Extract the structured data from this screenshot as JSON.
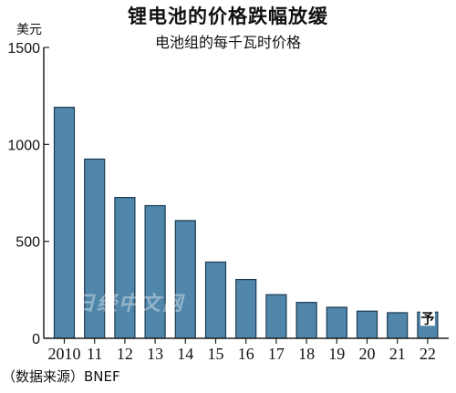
{
  "title": "锂电池的价格跌幅放缓",
  "subtitle": "电池组的每千瓦时价格",
  "unit": "美元",
  "source": "（数据来源）BNEF",
  "watermark": "日经中文网",
  "forecast_label": "予",
  "colors": {
    "bar": "#4f86aa",
    "bar_edge": "#1c3a52",
    "axis": "#222222"
  },
  "chart_data": {
    "type": "bar",
    "categories": [
      "2010",
      "11",
      "12",
      "13",
      "14",
      "15",
      "16",
      "17",
      "18",
      "19",
      "20",
      "21",
      "22"
    ],
    "values": [
      1191,
      924,
      726,
      684,
      607,
      393,
      303,
      225,
      185,
      160,
      140,
      132,
      135
    ],
    "ylim": [
      0,
      1500
    ],
    "yticks": [
      0,
      500,
      1000,
      1500
    ],
    "forecast_index": 12,
    "title": "锂电池的价格跌幅放缓",
    "subtitle": "电池组的每千瓦时价格",
    "ylabel": "美元",
    "grid": false,
    "legend": "none"
  }
}
